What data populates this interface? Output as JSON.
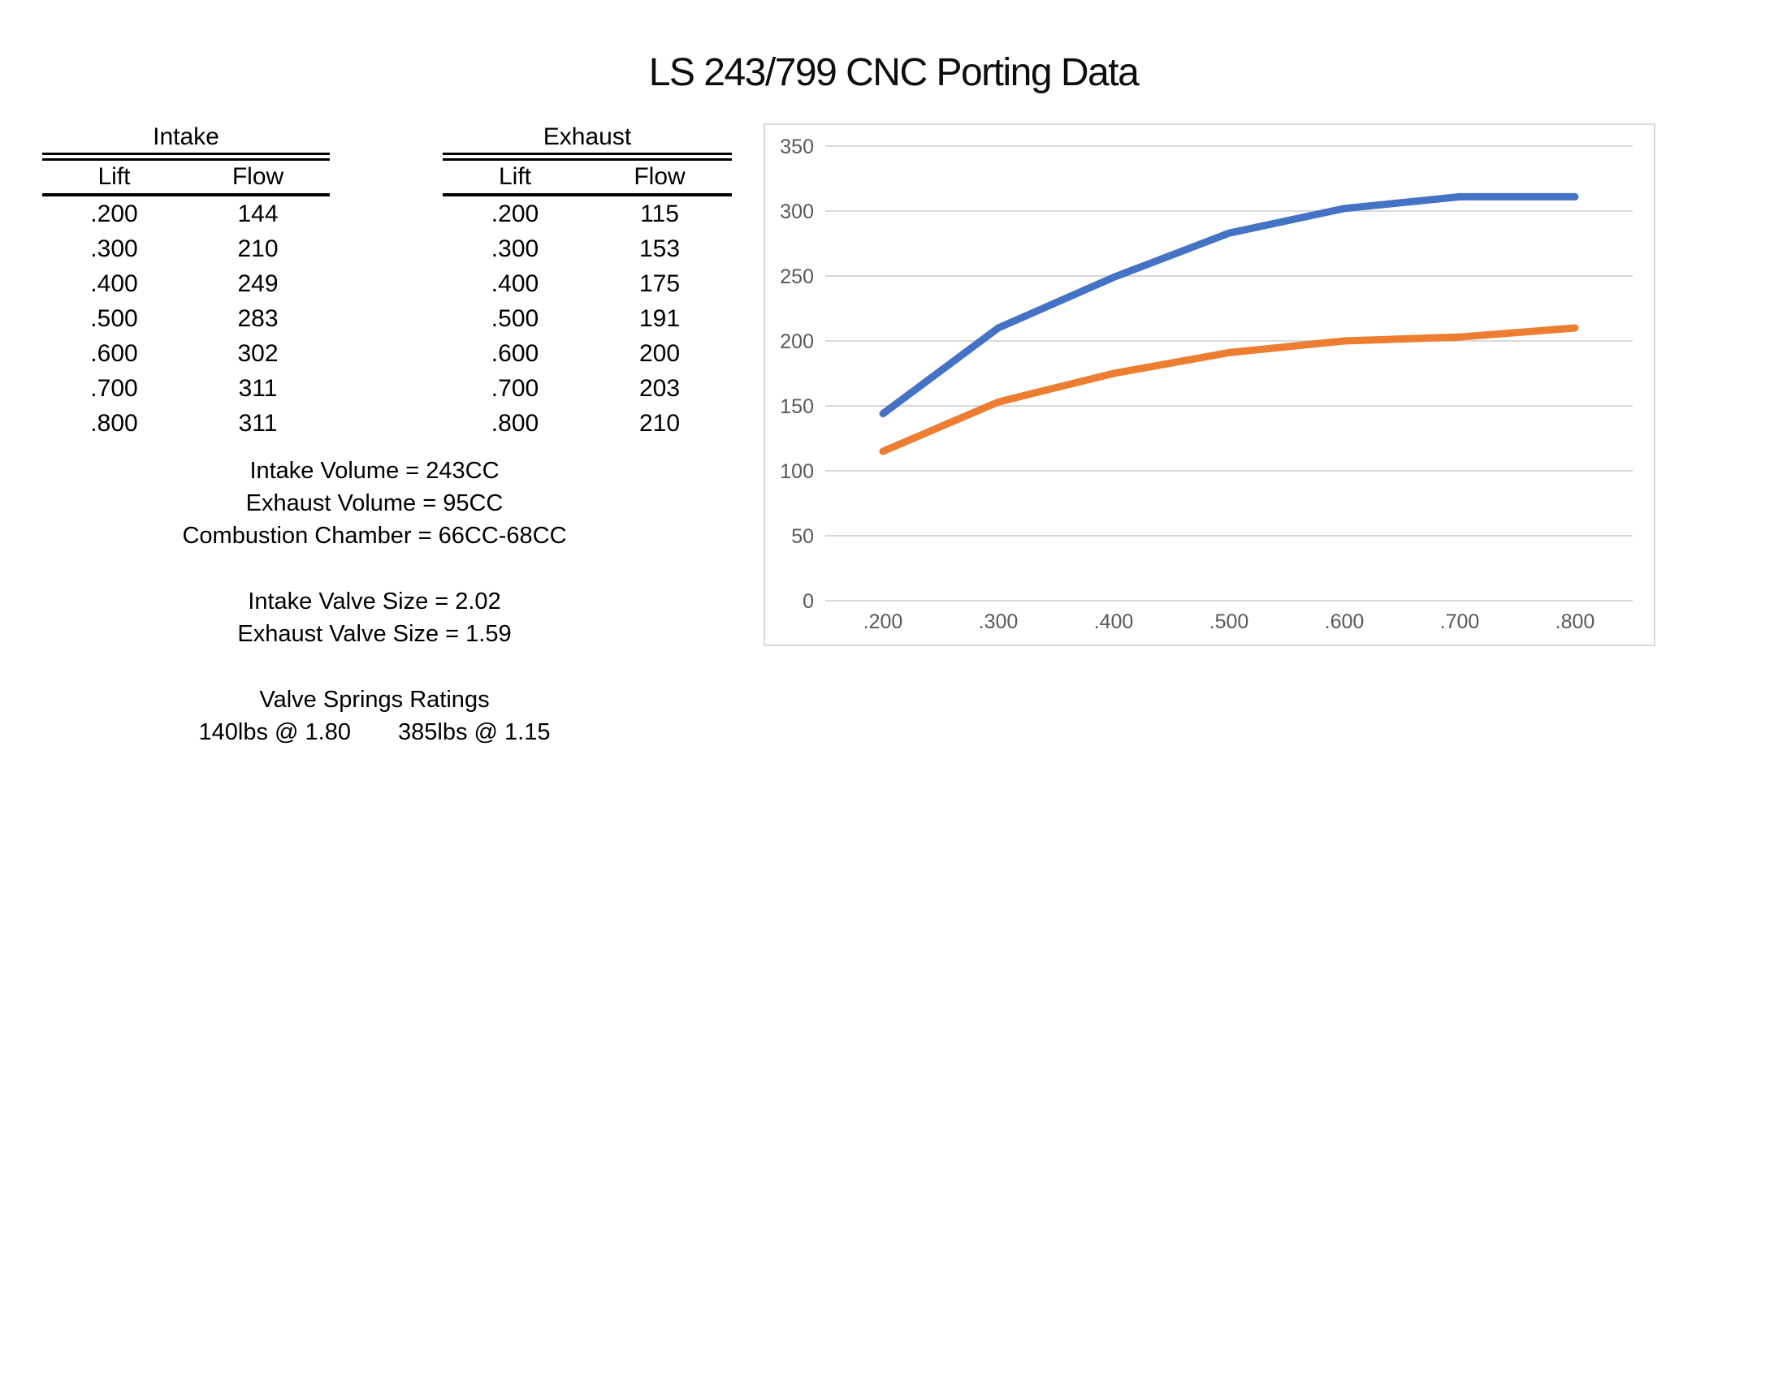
{
  "title": "LS 243/799 CNC Porting Data",
  "tables": {
    "intake": {
      "title": "Intake",
      "columns": [
        "Lift",
        "Flow"
      ],
      "rows": [
        [
          ".200",
          "144"
        ],
        [
          ".300",
          "210"
        ],
        [
          ".400",
          "249"
        ],
        [
          ".500",
          "283"
        ],
        [
          ".600",
          "302"
        ],
        [
          ".700",
          "311"
        ],
        [
          ".800",
          "311"
        ]
      ]
    },
    "exhaust": {
      "title": "Exhaust",
      "columns": [
        "Lift",
        "Flow"
      ],
      "rows": [
        [
          ".200",
          "115"
        ],
        [
          ".300",
          "153"
        ],
        [
          ".400",
          "175"
        ],
        [
          ".500",
          "191"
        ],
        [
          ".600",
          "200"
        ],
        [
          ".700",
          "203"
        ],
        [
          ".800",
          "210"
        ]
      ]
    }
  },
  "specs": {
    "volume": [
      "Intake Volume = 243CC",
      "Exhaust Volume = 95CC",
      "Combustion Chamber = 66CC-68CC"
    ],
    "valve": [
      "Intake Valve Size = 2.02",
      "Exhaust Valve Size = 1.59"
    ],
    "springs_title": "Valve Springs Ratings",
    "springs_left": "140lbs @ 1.80",
    "springs_right": "385lbs @ 1.15"
  },
  "chart_data": {
    "type": "line",
    "title": "",
    "xlabel": "",
    "ylabel": "",
    "categories": [
      ".200",
      ".300",
      ".400",
      ".500",
      ".600",
      ".700",
      ".800"
    ],
    "series": [
      {
        "name": "Intake",
        "color": "#4472C4",
        "values": [
          144,
          210,
          249,
          283,
          302,
          311,
          311
        ]
      },
      {
        "name": "Exhaust",
        "color": "#ED7D31",
        "values": [
          115,
          153,
          175,
          191,
          200,
          203,
          210
        ]
      }
    ],
    "ylim": [
      0,
      350
    ],
    "yticks": [
      0,
      50,
      100,
      150,
      200,
      250,
      300,
      350
    ],
    "grid": true,
    "legend": "none",
    "markers": "none",
    "colors": {
      "gridline": "#D9D9D9",
      "border": "#D9D9D9",
      "axis_label": "#595959"
    }
  }
}
